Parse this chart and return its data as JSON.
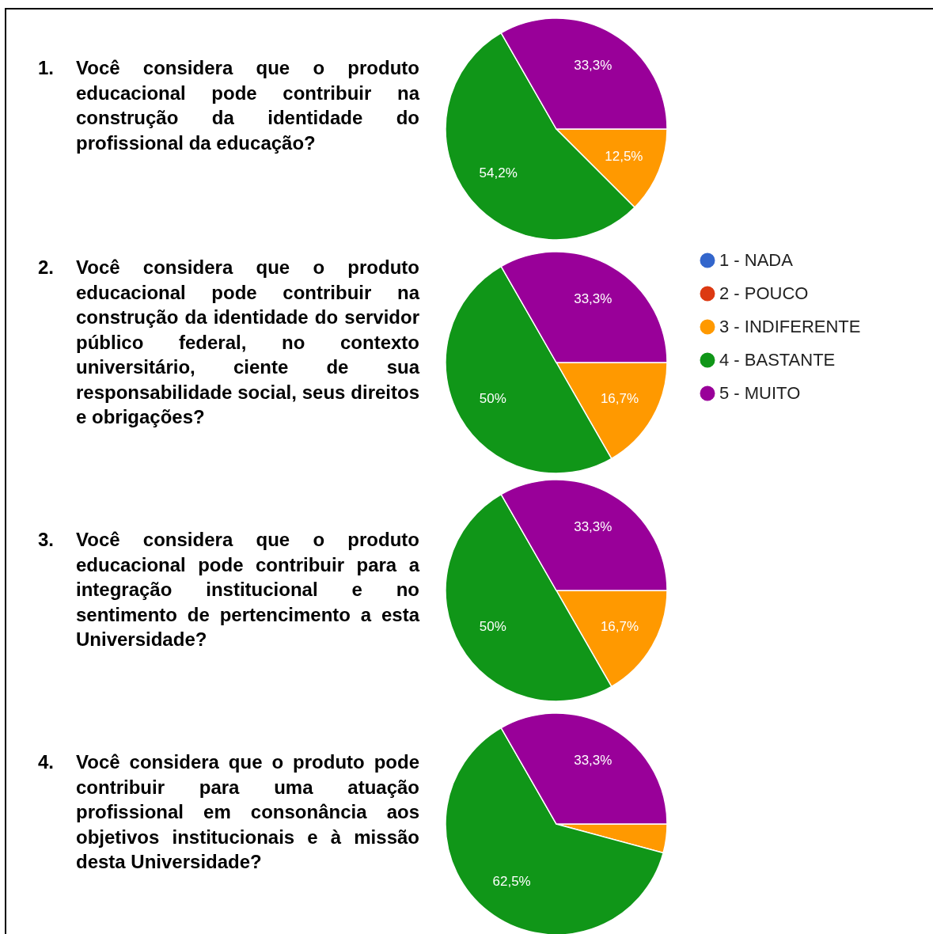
{
  "chart_data": [
    {
      "type": "pie",
      "title": "1. Você considera que o produto educacional pode contribuir na construção da identidade do profissional da educação?",
      "values": [
        0,
        0,
        12.5,
        54.2,
        33.3
      ],
      "colors": [
        "#3366cc",
        "#dc3912",
        "#ff9900",
        "#109618",
        "#990099"
      ],
      "value_labels": [
        null,
        null,
        "12,5%",
        "54,2%",
        "33,3%"
      ]
    },
    {
      "type": "pie",
      "title": "2. Você considera que o produto educacional pode contribuir na construção da identidade do servidor público federal, no contexto universitário, ciente de sua responsabilidade social, seus direitos e obrigações?",
      "categories": [
        "1 - NADA",
        "2 - POUCO",
        "3 - INDIFERENTE",
        "4 - BASTANTE",
        "5 - MUITO"
      ],
      "values": [
        0,
        0,
        16.7,
        50,
        33.3
      ],
      "colors": [
        "#3366cc",
        "#dc3912",
        "#ff9900",
        "#109618",
        "#990099"
      ],
      "value_labels": [
        null,
        null,
        "16,7%",
        "50%",
        "33,3%"
      ],
      "legend": "right"
    },
    {
      "type": "pie",
      "title": "3. Você considera que o produto educacional pode contribuir para a integração institucional e no sentimento de pertencimento a esta Universidade?",
      "values": [
        0,
        0,
        16.7,
        50,
        33.3
      ],
      "colors": [
        "#3366cc",
        "#dc3912",
        "#ff9900",
        "#109618",
        "#990099"
      ],
      "value_labels": [
        null,
        null,
        "16,7%",
        "50%",
        "33,3%"
      ]
    },
    {
      "type": "pie",
      "title": "4. Você considera que o produto pode contribuir para uma atuação profissional em consonância aos objetivos institucionais e à missão desta Universidade?",
      "values": [
        0,
        0,
        4.2,
        62.5,
        33.3
      ],
      "colors": [
        "#3366cc",
        "#dc3912",
        "#ff9900",
        "#109618",
        "#990099"
      ],
      "value_labels": [
        null,
        null,
        null,
        "62,5%",
        "33,3%"
      ]
    }
  ]
}
